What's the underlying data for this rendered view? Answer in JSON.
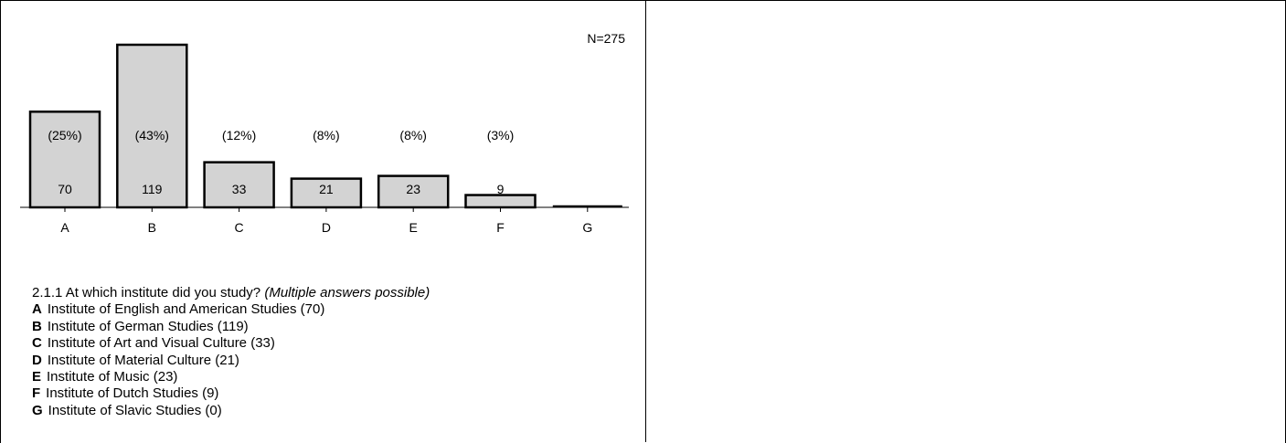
{
  "n_label": "N=275",
  "question": {
    "number_text": "2.1.1 At which institute did you study?",
    "note": "(Multiple answers possible)",
    "answers": [
      {
        "letter": "A",
        "text": "Institute of English and American Studies (70)"
      },
      {
        "letter": "B",
        "text": "Institute of German Studies (119)"
      },
      {
        "letter": "C",
        "text": "Institute of Art and Visual Culture (33)"
      },
      {
        "letter": "D",
        "text": "Institute of Material Culture (21)"
      },
      {
        "letter": "E",
        "text": "Institute of Music (23)"
      },
      {
        "letter": "F",
        "text": "Institute of Dutch Studies  (9)"
      },
      {
        "letter": "G",
        "text": "Institute of Slavic Studies (0)"
      }
    ]
  },
  "chart_data": {
    "type": "bar",
    "categories": [
      "A",
      "B",
      "C",
      "D",
      "E",
      "F",
      "G"
    ],
    "values": [
      70,
      119,
      33,
      21,
      23,
      9,
      0
    ],
    "value_labels": [
      "70",
      "119",
      "33",
      "21",
      "23",
      "9",
      ""
    ],
    "percent_labels": [
      "(25%)",
      "(43%)",
      "(12%)",
      "(8%)",
      "(8%)",
      "(3%)",
      ""
    ],
    "bar_color": "#d3d3d3",
    "grid": false,
    "title": "",
    "xlabel": "",
    "ylabel": ""
  }
}
